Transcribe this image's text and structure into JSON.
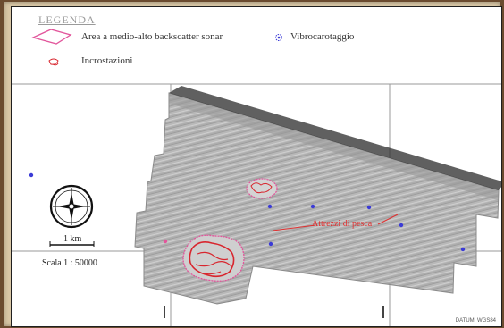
{
  "legend": {
    "title": "LEGENDA",
    "items": [
      {
        "label": "Area a medio-alto backscatter sonar",
        "icon": "pink-polygon-outline-icon"
      },
      {
        "label": "Incrostazioni",
        "icon": "red-hatch-patch-icon"
      },
      {
        "label": "Vibrocarotaggio",
        "icon": "blue-dot-marker-icon"
      }
    ]
  },
  "map": {
    "annotation": "Attrezzi di pesca",
    "scale_length": "1 km",
    "scale_ratio": "Scala 1 : 50000",
    "datum": "DATUM: WGS84",
    "colors": {
      "backscatter_outline": "#e2559b",
      "incrustation": "#d8262e",
      "vibrocore": "#3b3bd6",
      "annotation": "#e03030"
    }
  }
}
